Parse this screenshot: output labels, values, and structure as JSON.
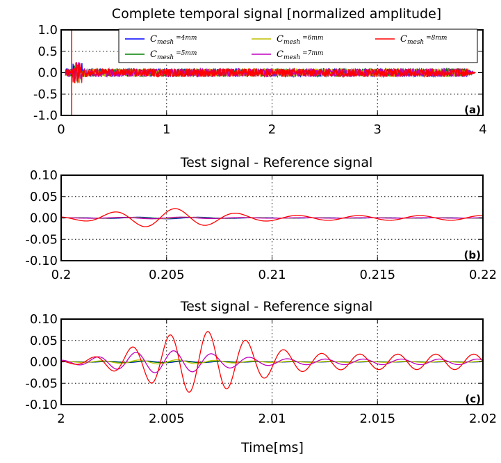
{
  "chart_data": [
    {
      "type": "line",
      "title": "Complete temporal signal [normalized amplitude]",
      "xlim": [
        0,
        4
      ],
      "ylim": [
        -1.0,
        1.0
      ],
      "xticks": [
        "0",
        "1",
        "2",
        "3",
        "4"
      ],
      "yticks": [
        "1.0",
        "0.5",
        "0.0",
        "-0.5",
        "-1.0"
      ],
      "grid": true,
      "panel_label": "(a)",
      "legend": {
        "placement": "top-right",
        "entries": [
          {
            "name": "C",
            "sub": "mesh",
            "value": "=4mm",
            "color": "#0000ff"
          },
          {
            "name": "C",
            "sub": "mesh",
            "value": "=5mm",
            "color": "#008000"
          },
          {
            "name": "C",
            "sub": "mesh",
            "value": "=6mm",
            "color": "#bfbf00"
          },
          {
            "name": "C",
            "sub": "mesh",
            "value": "=7mm",
            "color": "#bf00bf"
          },
          {
            "name": "C",
            "sub": "mesh",
            "value": "=8mm",
            "color": "#ff0000"
          }
        ]
      },
      "series_description": {
        "noise_amplitude": 0.1,
        "spike_x": 0.1,
        "spike_range": [
          -1.0,
          1.0
        ],
        "end_x": 3.93
      }
    },
    {
      "type": "line",
      "title": "Test signal - Reference signal",
      "xlim": [
        0.2,
        0.22
      ],
      "ylim": [
        -0.1,
        0.1
      ],
      "xticks": [
        "0.2",
        "0.205",
        "0.21",
        "0.215",
        "0.22"
      ],
      "yticks": [
        "0.10",
        "0.05",
        "0.00",
        "-0.05",
        "-0.10"
      ],
      "grid": true,
      "panel_label": "(b)",
      "series": [
        {
          "name": "C_mesh=4mm",
          "color": "#0000ff",
          "amplitude": 0.002,
          "period": 0.0029
        },
        {
          "name": "C_mesh=5mm",
          "color": "#008000",
          "amplitude": 0.001,
          "period": 0.0029
        },
        {
          "name": "C_mesh=6mm",
          "color": "#bfbf00",
          "amplitude": 0.002,
          "period": 0.0029
        },
        {
          "name": "C_mesh=7mm",
          "color": "#bf00bf",
          "amplitude": 0.002,
          "period": 0.0029
        },
        {
          "name": "C_mesh=8mm",
          "color": "#ff0000",
          "amplitude": 0.022,
          "period": 0.0029,
          "envelope_peak": 0.205
        }
      ]
    },
    {
      "type": "line",
      "title": "Test signal - Reference signal",
      "xlim": [
        2.0,
        2.02
      ],
      "ylim": [
        -0.1,
        0.1
      ],
      "xticks": [
        "2",
        "2.005",
        "2.01",
        "2.015",
        "2.02"
      ],
      "yticks": [
        "0.10",
        "0.05",
        "0.00",
        "-0.05",
        "-0.10"
      ],
      "grid": true,
      "panel_label": "(c)",
      "xlabel": "Time[ms]",
      "series": [
        {
          "name": "C_mesh=4mm",
          "color": "#0000ff",
          "amplitude": 0.002,
          "period": 0.0018
        },
        {
          "name": "C_mesh=5mm",
          "color": "#008000",
          "amplitude": 0.002,
          "period": 0.0018
        },
        {
          "name": "C_mesh=6mm",
          "color": "#bfbf00",
          "amplitude": 0.005,
          "period": 0.0018
        },
        {
          "name": "C_mesh=7mm",
          "color": "#bf00bf",
          "amplitude": 0.026,
          "period": 0.0018
        },
        {
          "name": "C_mesh=8mm",
          "color": "#ff0000",
          "amplitude": 0.072,
          "period": 0.0018,
          "envelope_peak": 2.0065
        }
      ]
    }
  ]
}
